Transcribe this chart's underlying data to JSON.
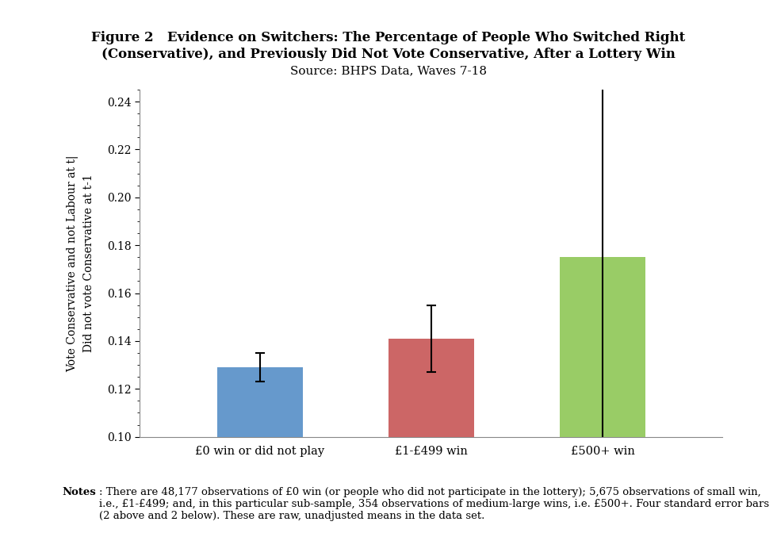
{
  "title_line1": "Figure 2   Evidence on Switchers: The Percentage of People Who Switched Right",
  "title_line2": "(Conservative), and Previously Did Not Vote Conservative, After a Lottery Win",
  "title_line3": "Source: BHPS Data, Waves 7-18",
  "categories": [
    "£0 win or did not play",
    "£1-£499 win",
    "£500+ win"
  ],
  "values": [
    0.129,
    0.141,
    0.175
  ],
  "errors": [
    0.003,
    0.007,
    0.043
  ],
  "bar_colors": [
    "#6699CC",
    "#CC6666",
    "#99CC66"
  ],
  "bar_width": 0.5,
  "ylim": [
    0.1,
    0.245
  ],
  "yticks": [
    0.1,
    0.12,
    0.14,
    0.16,
    0.18,
    0.2,
    0.22,
    0.24
  ],
  "ylabel_line1": "Vote Conservative and not Labour at t|",
  "ylabel_line2": "Did not vote Conservative at t-1",
  "xlabel": "",
  "notes_bold": "Notes",
  "notes_text": ": There are 48,177 observations of £0 win (or people who did not participate in the lottery); 5,675 observations of small win, i.e., £1-£499; and, in this particular sub-sample, 354 observations of medium-large wins, i.e. £500+. Four standard error bars (2 above and 2 below). These are raw, unadjusted means in the data set.",
  "bg_color": "#ffffff",
  "plot_bg_color": "#ffffff",
  "box_edge_color": "#aaaaaa",
  "error_bar_color": "#000000",
  "error_cap_size": 4,
  "error_linewidth": 1.5
}
